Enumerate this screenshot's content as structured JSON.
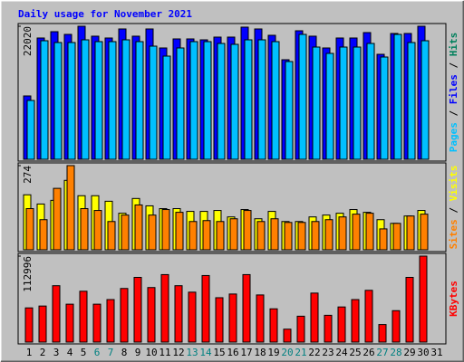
{
  "chart_data": {
    "type": "bar",
    "title": "Daily usage for November 2021",
    "categories": [
      "1",
      "2",
      "3",
      "4",
      "5",
      "6",
      "7",
      "8",
      "9",
      "10",
      "11",
      "12",
      "13",
      "14",
      "15",
      "16",
      "17",
      "18",
      "19",
      "20",
      "21",
      "22",
      "23",
      "24",
      "25",
      "26",
      "27",
      "28",
      "29",
      "30",
      "31"
    ],
    "category_colors": [
      "#000000",
      "#000000",
      "#000000",
      "#000000",
      "#000000",
      "#008080",
      "#008080",
      "#000000",
      "#000000",
      "#000000",
      "#000000",
      "#000000",
      "#008080",
      "#008080",
      "#000000",
      "#000000",
      "#000000",
      "#000000",
      "#000000",
      "#008080",
      "#008080",
      "#000000",
      "#000000",
      "#000000",
      "#000000",
      "#000000",
      "#008080",
      "#008080",
      "#000000",
      "#000000",
      "#000000"
    ],
    "legend_separator": " / ",
    "panels": [
      {
        "ylim": [
          0,
          22020
        ],
        "yticks": [
          22020
        ],
        "series": [
          {
            "name": "Hits",
            "color": "#00805c",
            "values": [
              10486,
              20073,
              21121,
              20672,
              22020,
              20373,
              20073,
              21571,
              20373,
              21571,
              18425,
              19923,
              19923,
              19773,
              20223,
              20223,
              21871,
              21571,
              20522,
              16478,
              21271,
              20373,
              18425,
              20073,
              20073,
              20972,
              17376,
              20822,
              20822,
              22020,
              null
            ]
          },
          {
            "name": "Files",
            "color": "#0000ff",
            "values": [
              10486,
              20073,
              21121,
              20672,
              22020,
              20373,
              20073,
              21571,
              20373,
              21571,
              18425,
              19923,
              19923,
              19773,
              20223,
              20223,
              21871,
              21571,
              20522,
              16478,
              21271,
              20373,
              18425,
              20073,
              20073,
              20972,
              17376,
              20822,
              20822,
              22020,
              null
            ]
          },
          {
            "name": "Pages",
            "color": "#00c0ff",
            "values": [
              9737,
              19623,
              19324,
              19324,
              19773,
              19474,
              19474,
              19773,
              19474,
              18724,
              17077,
              18425,
              19474,
              19474,
              19174,
              19025,
              19773,
              19773,
              19474,
              16178,
              20672,
              18575,
              17526,
              18575,
              18575,
              19174,
              16927,
              20672,
              19324,
              19623,
              null
            ]
          }
        ]
      },
      {
        "ylim": [
          0,
          274
        ],
        "yticks": [
          274
        ],
        "series": [
          {
            "name": "Visits",
            "color": "#ffff00",
            "values": [
              179,
              149,
              161,
              226,
              176,
              176,
              158,
              119,
              167,
              143,
              134,
              134,
              125,
              125,
              128,
              107,
              131,
              101,
              125,
              92,
              92,
              107,
              113,
              119,
              131,
              122,
              98,
              86,
              110,
              128,
              null
            ]
          },
          {
            "name": "Sites",
            "color": "#ff8000",
            "values": [
              134,
              98,
              200,
              274,
              134,
              128,
              92,
              113,
              146,
              113,
              131,
              122,
              92,
              95,
              92,
              101,
              128,
              92,
              101,
              89,
              89,
              92,
              98,
              107,
              116,
              119,
              68,
              86,
              110,
              116,
              null
            ]
          }
        ]
      },
      {
        "ylim": [
          0,
          112996
        ],
        "yticks": [
          112996
        ],
        "series": [
          {
            "name": "KBytes",
            "color": "#ff0000",
            "values": [
              44955,
              47385,
              74115,
              49815,
              66825,
              49815,
              55890,
              70470,
              85050,
              71685,
              88695,
              74115,
              65610,
              87480,
              58320,
              63180,
              88695,
              61965,
              43740,
              17010,
              34020,
              64395,
              35235,
              46170,
              55890,
              68040,
              23085,
              41310,
              85050,
              112996,
              null
            ]
          }
        ]
      }
    ]
  }
}
